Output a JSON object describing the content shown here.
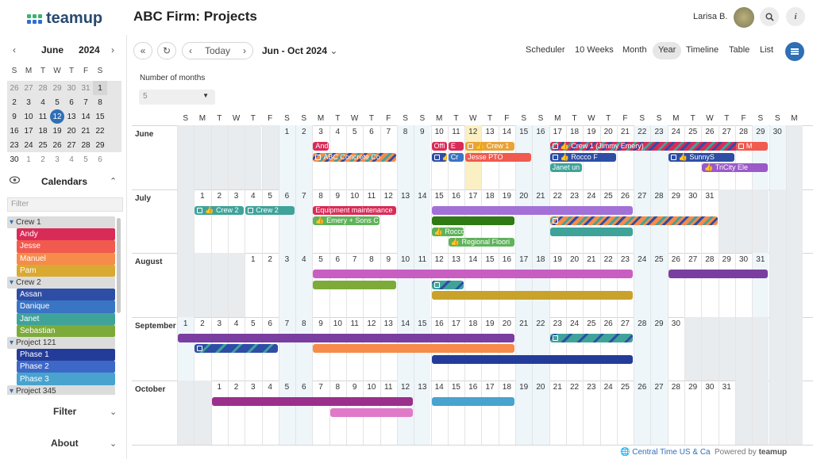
{
  "app": {
    "brand": "teamup",
    "title": "ABC Firm: Projects",
    "user": "Larisa B."
  },
  "mini": {
    "month": "June",
    "year": "2024",
    "dows": [
      "S",
      "M",
      "T",
      "W",
      "T",
      "F",
      "S"
    ],
    "weeks": [
      [
        [
          "26",
          1
        ],
        [
          "27",
          1
        ],
        [
          "28",
          1
        ],
        [
          "29",
          1
        ],
        [
          "30",
          1
        ],
        [
          "31",
          1
        ],
        [
          "1",
          0
        ]
      ],
      [
        [
          "2",
          0
        ],
        [
          "3",
          0
        ],
        [
          "4",
          0
        ],
        [
          "5",
          0
        ],
        [
          "6",
          0
        ],
        [
          "7",
          0
        ],
        [
          "8",
          0
        ]
      ],
      [
        [
          "9",
          0
        ],
        [
          "10",
          0
        ],
        [
          "11",
          0
        ],
        [
          "12",
          2
        ],
        [
          "13",
          0
        ],
        [
          "14",
          0
        ],
        [
          "15",
          0
        ]
      ],
      [
        [
          "16",
          0
        ],
        [
          "17",
          0
        ],
        [
          "18",
          0
        ],
        [
          "19",
          0
        ],
        [
          "20",
          0
        ],
        [
          "21",
          0
        ],
        [
          "22",
          0
        ]
      ],
      [
        [
          "23",
          0
        ],
        [
          "24",
          0
        ],
        [
          "25",
          0
        ],
        [
          "26",
          0
        ],
        [
          "27",
          0
        ],
        [
          "28",
          0
        ],
        [
          "29",
          0
        ]
      ],
      [
        [
          "30",
          0
        ],
        [
          "1",
          1
        ],
        [
          "2",
          1
        ],
        [
          "3",
          1
        ],
        [
          "4",
          1
        ],
        [
          "5",
          1
        ],
        [
          "6",
          1
        ]
      ]
    ]
  },
  "calendars": {
    "title": "Calendars",
    "filter_placeholder": "Filter",
    "items": [
      {
        "type": "group",
        "label": "Crew 1"
      },
      {
        "type": "sub",
        "label": "Andy",
        "color": "#d92b57"
      },
      {
        "type": "sub",
        "label": "Jesse",
        "color": "#f05a4f"
      },
      {
        "type": "sub",
        "label": "Manuel",
        "color": "#f68b4a"
      },
      {
        "type": "sub",
        "label": "Pam",
        "color": "#d9a931"
      },
      {
        "type": "group",
        "label": "Crew 2"
      },
      {
        "type": "sub",
        "label": "Assan",
        "color": "#2e4ea6"
      },
      {
        "type": "sub",
        "label": "Danique",
        "color": "#3a74c4"
      },
      {
        "type": "sub",
        "label": "Janet",
        "color": "#3fa39a"
      },
      {
        "type": "sub",
        "label": "Sebastian",
        "color": "#7cab3a"
      },
      {
        "type": "group",
        "label": "Project 121"
      },
      {
        "type": "sub",
        "label": "Phase 1",
        "color": "#243c99"
      },
      {
        "type": "sub",
        "label": "Phase 2",
        "color": "#3d68c7"
      },
      {
        "type": "sub",
        "label": "Phase 3",
        "color": "#48a3cf"
      },
      {
        "type": "group",
        "label": "Project 345"
      }
    ]
  },
  "sections": {
    "filter": "Filter",
    "about": "About"
  },
  "toolbar": {
    "today": "Today",
    "range": "Jun - Oct 2024",
    "views": [
      "Scheduler",
      "10 Weeks",
      "Month",
      "Year",
      "Timeline",
      "Table",
      "List"
    ],
    "active_view": "Year",
    "months_label": "Number of months",
    "months_value": "5"
  },
  "year_view": {
    "dows": [
      "S",
      "M",
      "T",
      "W",
      "T",
      "F",
      "S",
      "S",
      "M",
      "T",
      "W",
      "T",
      "F",
      "S",
      "S",
      "M",
      "T",
      "W",
      "T",
      "F",
      "S",
      "S",
      "M",
      "T",
      "W",
      "T",
      "F",
      "S",
      "S",
      "M",
      "T",
      "W",
      "T",
      "F",
      "S",
      "S",
      "M"
    ],
    "months": [
      {
        "name": "June",
        "start": 6,
        "days": 30
      },
      {
        "name": "July",
        "start": 1,
        "days": 31
      },
      {
        "name": "August",
        "start": 4,
        "days": 31
      },
      {
        "name": "September",
        "start": 0,
        "days": 30
      },
      {
        "name": "October",
        "start": 2,
        "days": 31
      }
    ],
    "events": [
      {
        "m": 0,
        "d0": 3,
        "d1": 3,
        "r": 0,
        "color": "#d92b57",
        "label": "And",
        "icon": false
      },
      {
        "m": 0,
        "d0": 3,
        "d1": 7,
        "r": 1,
        "color": "#f68b4a",
        "label": "ABC Concrete Co",
        "icon": true,
        "striped": true
      },
      {
        "m": 0,
        "d0": 10,
        "d1": 10,
        "r": 0,
        "color": "#d92b57",
        "label": "Offi",
        "icon": false
      },
      {
        "m": 0,
        "d0": 11,
        "d1": 11,
        "r": 0,
        "color": "#d92b57",
        "label": "E",
        "icon": false
      },
      {
        "m": 0,
        "d0": 12,
        "d1": 14,
        "r": 0,
        "color": "#e8a33a",
        "label": "👍 Crew 1",
        "icon": true
      },
      {
        "m": 0,
        "d0": 10,
        "d1": 10,
        "r": 1,
        "color": "#2e4ea6",
        "label": "👍",
        "icon": true
      },
      {
        "m": 0,
        "d0": 11,
        "d1": 11,
        "r": 1,
        "color": "#3a74c4",
        "label": "Cr",
        "icon": false
      },
      {
        "m": 0,
        "d0": 12,
        "d1": 15,
        "r": 1,
        "color": "#f05a4f",
        "label": "Jesse PTO",
        "icon": false
      },
      {
        "m": 0,
        "d0": 17,
        "d1": 28,
        "r": 0,
        "color": "#d92b57",
        "label": "👍 Crew 1 (Jimmy Emery)",
        "icon": true,
        "striped": true
      },
      {
        "m": 0,
        "d0": 28,
        "d1": 29,
        "r": 0,
        "color": "#f05a4f",
        "label": "M",
        "icon": true
      },
      {
        "m": 0,
        "d0": 17,
        "d1": 20,
        "r": 1,
        "color": "#2e4ea6",
        "label": "👍 Rocco F",
        "icon": true
      },
      {
        "m": 0,
        "d0": 24,
        "d1": 27,
        "r": 1,
        "color": "#2e4ea6",
        "label": "👍 SunnyS",
        "icon": true
      },
      {
        "m": 0,
        "d0": 17,
        "d1": 18,
        "r": 2,
        "color": "#3fa39a",
        "label": "Janet un",
        "icon": false
      },
      {
        "m": 0,
        "d0": 26,
        "d1": 29,
        "r": 2,
        "color": "#9b59c9",
        "label": "👍 TriCity Ele",
        "icon": false
      },
      {
        "m": 1,
        "d0": 1,
        "d1": 3,
        "r": 0,
        "color": "#3fa39a",
        "label": "👍 Crew 2",
        "icon": true
      },
      {
        "m": 1,
        "d0": 4,
        "d1": 6,
        "r": 0,
        "color": "#3fa39a",
        "label": "Crew 2",
        "icon": true
      },
      {
        "m": 1,
        "d0": 8,
        "d1": 12,
        "r": 0,
        "color": "#d92b57",
        "label": "Equipment maintenance",
        "icon": false
      },
      {
        "m": 1,
        "d0": 8,
        "d1": 11,
        "r": 1,
        "color": "#5fb35a",
        "label": "👍 Emery + Sons C",
        "icon": false
      },
      {
        "m": 1,
        "d0": 15,
        "d1": 26,
        "r": 0,
        "color": "#a370d8",
        "label": "",
        "icon": false
      },
      {
        "m": 1,
        "d0": 15,
        "d1": 19,
        "r": 1,
        "color": "#2f7a12",
        "label": "",
        "icon": false
      },
      {
        "m": 1,
        "d0": 22,
        "d1": 31,
        "r": 1,
        "color": "#f68b4a",
        "label": "",
        "icon": true,
        "striped": true
      },
      {
        "m": 1,
        "d0": 15,
        "d1": 16,
        "r": 2,
        "color": "#5fb35a",
        "label": "👍 Rocco",
        "icon": false
      },
      {
        "m": 1,
        "d0": 22,
        "d1": 26,
        "r": 2,
        "color": "#3fa39a",
        "label": "",
        "icon": false
      },
      {
        "m": 1,
        "d0": 16,
        "d1": 19,
        "r": 3,
        "color": "#5fb35a",
        "label": "👍 Regional Floori",
        "icon": false
      },
      {
        "m": 2,
        "d0": 5,
        "d1": 23,
        "r": 0,
        "color": "#c85ec2",
        "label": "",
        "icon": false
      },
      {
        "m": 2,
        "d0": 26,
        "d1": 31,
        "r": 0,
        "color": "#7a3ea0",
        "label": "",
        "icon": false
      },
      {
        "m": 2,
        "d0": 5,
        "d1": 9,
        "r": 1,
        "color": "#7cab3a",
        "label": "",
        "icon": false
      },
      {
        "m": 2,
        "d0": 12,
        "d1": 13,
        "r": 1,
        "color": "#3fa39a",
        "label": "",
        "icon": true,
        "striped": true
      },
      {
        "m": 2,
        "d0": 12,
        "d1": 23,
        "r": 2,
        "color": "#c8a22a",
        "label": "",
        "icon": false
      },
      {
        "m": 3,
        "d0": 1,
        "d1": 20,
        "r": 0,
        "color": "#7a3ea0",
        "label": "",
        "icon": false,
        "clipLeft": true
      },
      {
        "m": 3,
        "d0": 23,
        "d1": 27,
        "r": 0,
        "color": "#3fa39a",
        "label": "",
        "icon": true,
        "striped": true
      },
      {
        "m": 3,
        "d0": 2,
        "d1": 6,
        "r": 1,
        "color": "#2e4ea6",
        "label": "",
        "icon": true,
        "striped": true
      },
      {
        "m": 3,
        "d0": 9,
        "d1": 20,
        "r": 1,
        "color": "#f68b4a",
        "label": "",
        "icon": false
      },
      {
        "m": 3,
        "d0": 16,
        "d1": 27,
        "r": 2,
        "color": "#243c99",
        "label": "",
        "icon": false
      },
      {
        "m": 4,
        "d0": 1,
        "d1": 12,
        "r": 0,
        "color": "#9a2f8c",
        "label": "",
        "icon": false
      },
      {
        "m": 4,
        "d0": 14,
        "d1": 18,
        "r": 0,
        "color": "#48a3cf",
        "label": "",
        "icon": false
      },
      {
        "m": 4,
        "d0": 8,
        "d1": 12,
        "r": 1,
        "color": "#e07ac8",
        "label": "",
        "icon": false
      }
    ]
  },
  "footer": {
    "timezone": "Central Time US & Ca",
    "powered": "Powered by",
    "brand": "teamup"
  }
}
